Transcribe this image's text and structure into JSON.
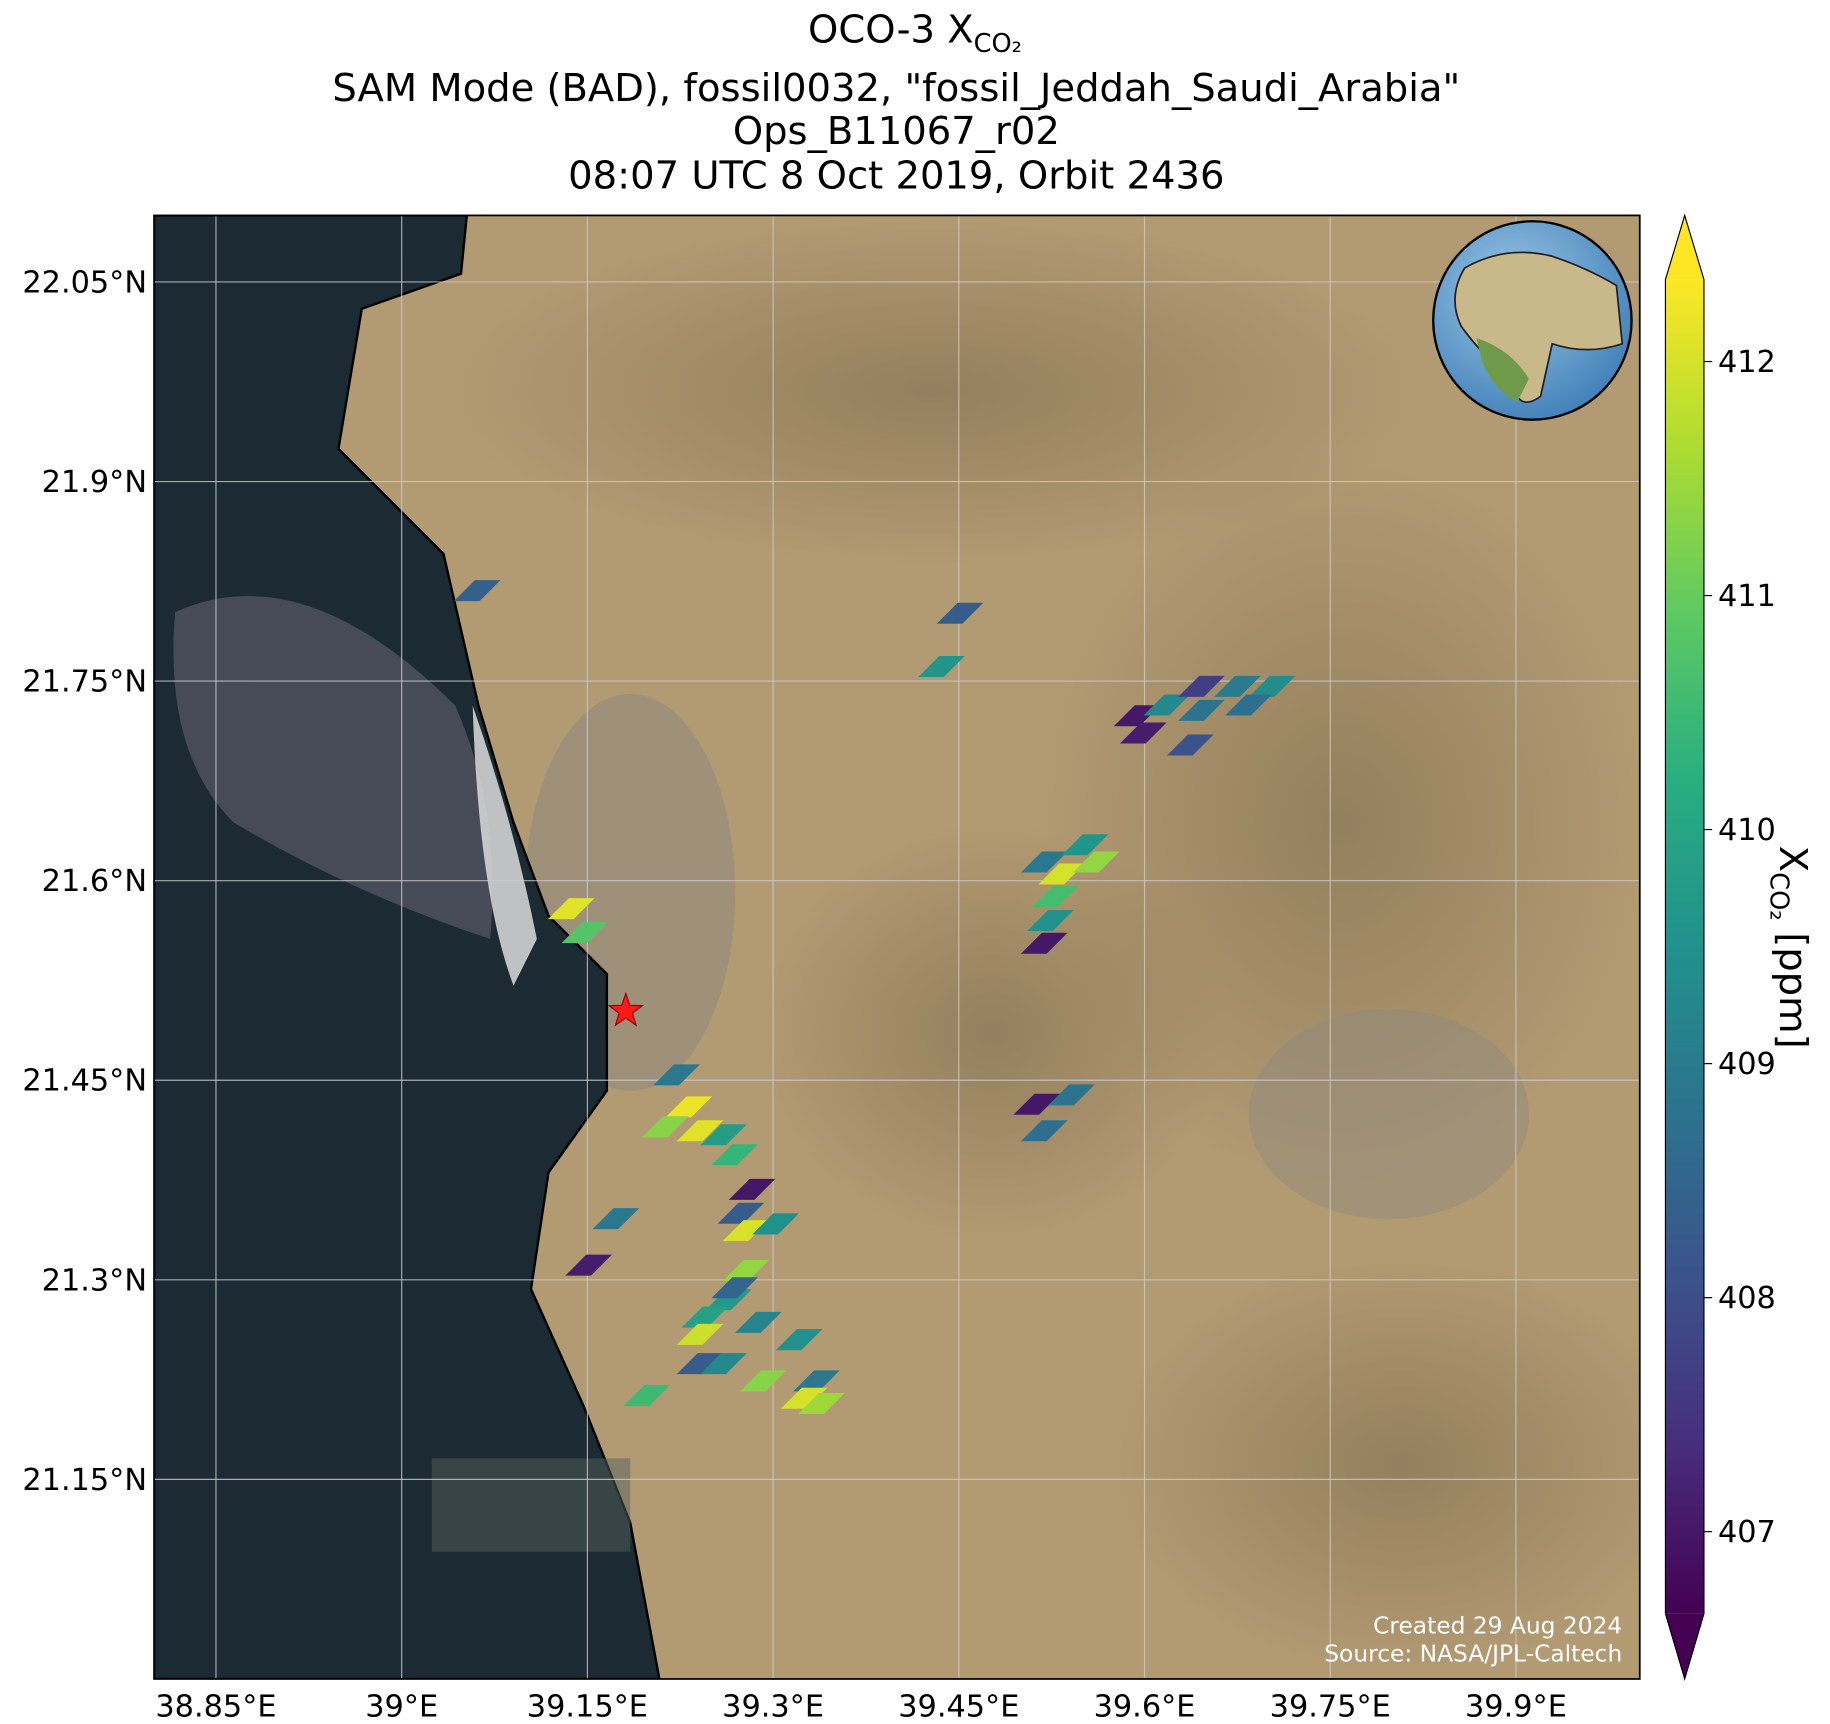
{
  "chart_data": {
    "type": "map",
    "title": "OCO-3 X",
    "title_sub": "CO₂",
    "subtitle": [
      "SAM Mode (BAD), fossil0032, \"fossil_Jeddah_Saudi_Arabia\"",
      "Ops_B11067_r02",
      "08:07 UTC 8 Oct 2019, Orbit 2436"
    ],
    "xlim": [
      38.8,
      40.0
    ],
    "ylim": [
      21.0,
      22.1
    ],
    "xticks": [
      {
        "value": 38.85,
        "label": "38.85°E"
      },
      {
        "value": 39.0,
        "label": "39°E"
      },
      {
        "value": 39.15,
        "label": "39.15°E"
      },
      {
        "value": 39.3,
        "label": "39.3°E"
      },
      {
        "value": 39.45,
        "label": "39.45°E"
      },
      {
        "value": 39.6,
        "label": "39.6°E"
      },
      {
        "value": 39.75,
        "label": "39.75°E"
      },
      {
        "value": 39.9,
        "label": "39.9°E"
      }
    ],
    "yticks": [
      {
        "value": 21.15,
        "label": "21.15°N"
      },
      {
        "value": 21.3,
        "label": "21.3°N"
      },
      {
        "value": 21.45,
        "label": "21.45°N"
      },
      {
        "value": 21.6,
        "label": "21.6°N"
      },
      {
        "value": 21.75,
        "label": "21.75°N"
      },
      {
        "value": 21.9,
        "label": "21.9°N"
      },
      {
        "value": 22.05,
        "label": "22.05°N"
      }
    ],
    "grid": true,
    "colormap": "viridis",
    "clim": [
      406.65,
      412.35
    ],
    "cticks": [
      407,
      408,
      409,
      410,
      411,
      412
    ],
    "colorbar_label": "X",
    "colorbar_label_sub": "CO₂",
    "colorbar_label_unit": "[ppm]",
    "x": [
      39.061,
      39.451,
      39.436,
      39.594,
      39.599,
      39.618,
      39.646,
      39.675,
      39.703,
      39.646,
      39.684,
      39.637,
      39.519,
      39.552,
      39.533,
      39.561,
      39.528,
      39.524,
      39.519,
      39.137,
      39.148,
      39.513,
      39.541,
      39.519,
      39.222,
      39.232,
      39.213,
      39.241,
      39.26,
      39.269,
      39.283,
      39.274,
      39.278,
      39.302,
      39.173,
      39.151,
      39.278,
      39.264,
      39.269,
      39.245,
      39.241,
      39.288,
      39.321,
      39.241,
      39.26,
      39.335,
      39.292,
      39.325,
      39.339,
      39.198
    ],
    "y": [
      21.818,
      21.801,
      21.761,
      21.724,
      21.711,
      21.732,
      21.746,
      21.746,
      21.746,
      21.728,
      21.732,
      21.702,
      21.614,
      21.627,
      21.605,
      21.614,
      21.588,
      21.57,
      21.553,
      21.579,
      21.561,
      21.432,
      21.439,
      21.412,
      21.454,
      21.43,
      21.415,
      21.412,
      21.409,
      21.394,
      21.368,
      21.35,
      21.337,
      21.342,
      21.346,
      21.311,
      21.307,
      21.285,
      21.294,
      21.272,
      21.259,
      21.268,
      21.255,
      21.237,
      21.237,
      21.224,
      21.224,
      21.211,
      21.207,
      21.213
    ],
    "values": [
      408.4,
      408.3,
      409.6,
      407.0,
      407.1,
      409.3,
      407.7,
      409.0,
      409.4,
      408.8,
      408.7,
      408.1,
      408.9,
      409.6,
      412.0,
      411.4,
      410.6,
      409.5,
      407.0,
      412.1,
      410.8,
      407.0,
      408.8,
      408.7,
      408.9,
      412.2,
      411.3,
      412.1,
      409.8,
      410.4,
      407.0,
      408.3,
      412.0,
      409.5,
      408.9,
      407.1,
      411.4,
      409.7,
      408.5,
      409.9,
      411.9,
      409.2,
      409.5,
      408.3,
      409.3,
      408.9,
      411.3,
      412.0,
      411.5,
      410.5
    ],
    "target": {
      "x": 39.181,
      "y": 21.502
    },
    "credits": [
      "Created 29 Aug 2024",
      "Source: NASA/JPL-Caltech"
    ]
  }
}
